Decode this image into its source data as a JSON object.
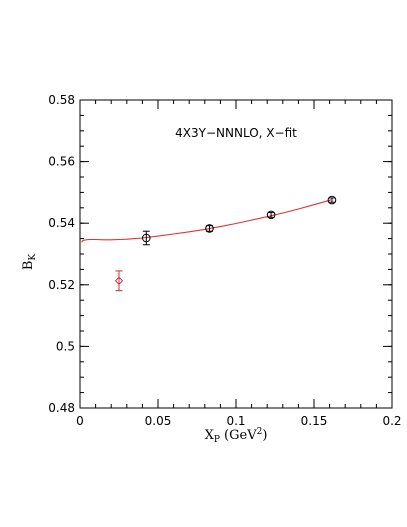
{
  "chart_data": {
    "type": "scatter",
    "annotation": "4X3Y−NNNLO, X−fit",
    "xlabel": {
      "main": "X",
      "sub": "P",
      "rest": " (GeV",
      "sup": "2",
      "end": ")"
    },
    "ylabel": {
      "main": "B",
      "sub": "K"
    },
    "xlim": [
      0,
      0.2
    ],
    "ylim": [
      0.48,
      0.58
    ],
    "x_ticks": [
      {
        "value": 0,
        "label": "0"
      },
      {
        "value": 0.05,
        "label": "0.05"
      },
      {
        "value": 0.1,
        "label": "0.1"
      },
      {
        "value": 0.15,
        "label": "0.15"
      },
      {
        "value": 0.2,
        "label": "0.2"
      }
    ],
    "y_ticks": [
      {
        "value": 0.48,
        "label": "0.48"
      },
      {
        "value": 0.5,
        "label": "0.5"
      },
      {
        "value": 0.52,
        "label": "0.52"
      },
      {
        "value": 0.54,
        "label": "0.54"
      },
      {
        "value": 0.56,
        "label": "0.56"
      },
      {
        "value": 0.58,
        "label": "0.58"
      }
    ],
    "x_minor_step": 0.01,
    "y_minor_step": 0.005,
    "data_points": [
      {
        "x": 0.0425,
        "y": 0.5352,
        "err": 0.0022
      },
      {
        "x": 0.083,
        "y": 0.5383,
        "err": 0.0009
      },
      {
        "x": 0.1225,
        "y": 0.5427,
        "err": 0.0008
      },
      {
        "x": 0.1615,
        "y": 0.5475,
        "err": 0.0007
      }
    ],
    "extrapolated_point": {
      "x": 0.025,
      "y": 0.5213,
      "err": 0.0032
    },
    "fit_curve": {
      "x": [
        0.001,
        0.002,
        0.004,
        0.006,
        0.01,
        0.015,
        0.02,
        0.025,
        0.03,
        0.035,
        0.04,
        0.05,
        0.06,
        0.07,
        0.08,
        0.09,
        0.1,
        0.11,
        0.12,
        0.13,
        0.14,
        0.15,
        0.161
      ],
      "y": [
        0.5338,
        0.5344,
        0.5346,
        0.5347,
        0.5347,
        0.5346,
        0.5346,
        0.5347,
        0.5348,
        0.535,
        0.5352,
        0.5358,
        0.5365,
        0.5372,
        0.538,
        0.5389,
        0.5399,
        0.541,
        0.5421,
        0.5433,
        0.5446,
        0.546,
        0.5476
      ]
    },
    "colors": {
      "data": "#000000",
      "fit": "#dd3333",
      "extrapolated": "#cc3344"
    }
  }
}
